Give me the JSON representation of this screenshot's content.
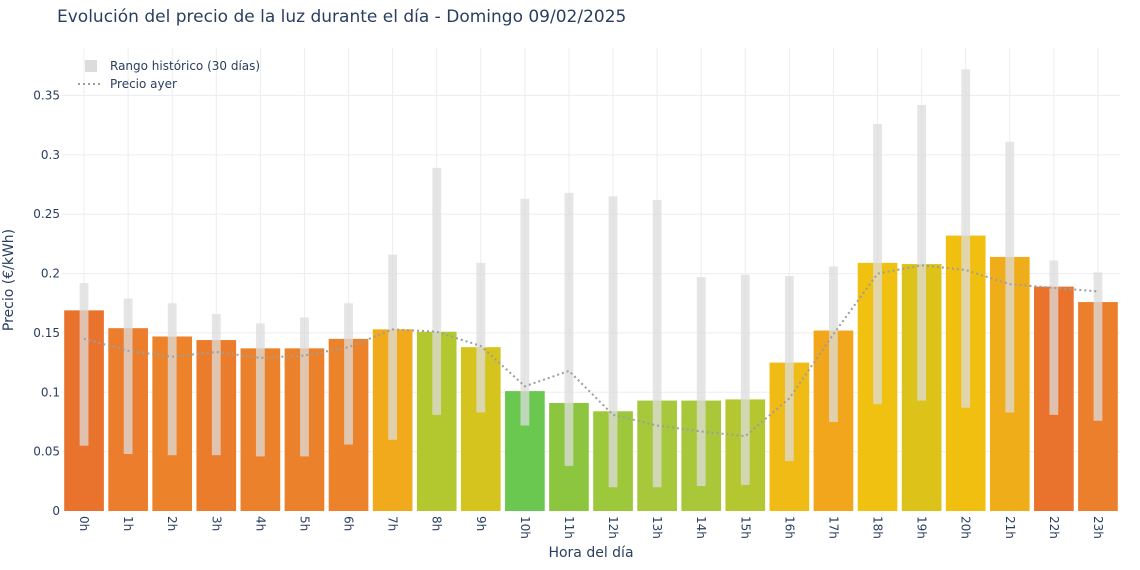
{
  "chart_data": {
    "type": "bar",
    "title": "Evolución del precio de la luz durante el día - Domingo 09/02/2025",
    "xlabel": "Hora del día",
    "ylabel": "Precio (€/kWh)",
    "ylim": [
      0,
      0.39
    ],
    "yticks": [
      0,
      0.05,
      0.1,
      0.15,
      0.2,
      0.25,
      0.3,
      0.35
    ],
    "ytick_labels": [
      "0",
      "0.05",
      "0.1",
      "0.15",
      "0.2",
      "0.25",
      "0.3",
      "0.35"
    ],
    "categories": [
      "0h",
      "1h",
      "2h",
      "3h",
      "4h",
      "5h",
      "6h",
      "7h",
      "8h",
      "9h",
      "10h",
      "11h",
      "12h",
      "13h",
      "14h",
      "15h",
      "16h",
      "17h",
      "18h",
      "19h",
      "20h",
      "21h",
      "22h",
      "23h"
    ],
    "grid": true,
    "legend_position": "top-left",
    "series": [
      {
        "type": "bar",
        "values": [
          0.169,
          0.154,
          0.147,
          0.144,
          0.137,
          0.137,
          0.145,
          0.153,
          0.151,
          0.138,
          0.101,
          0.091,
          0.084,
          0.093,
          0.093,
          0.094,
          0.125,
          0.152,
          0.209,
          0.208,
          0.232,
          0.214,
          0.189,
          0.176
        ],
        "colors": [
          "#e9722c",
          "#eb7d2c",
          "#ec832a",
          "#eb7c2c",
          "#ec812b",
          "#ec812b",
          "#ec832a",
          "#f0aa1c",
          "#b3c72e",
          "#d6c41e",
          "#6ac74f",
          "#8cc63f",
          "#9ec83b",
          "#a6c83a",
          "#a8c83a",
          "#b4c731",
          "#f0bb14",
          "#f1a61b",
          "#f1c111",
          "#ddc219",
          "#f1bf10",
          "#f0ad1a",
          "#e9722c",
          "#ec7f2c"
        ]
      },
      {
        "name": "Rango histórico (30 días)",
        "type": "range",
        "color": "#dcdcdc",
        "low": [
          0.055,
          0.048,
          0.047,
          0.047,
          0.046,
          0.046,
          0.056,
          0.06,
          0.081,
          0.083,
          0.072,
          0.038,
          0.02,
          0.02,
          0.021,
          0.022,
          0.042,
          0.075,
          0.09,
          0.093,
          0.087,
          0.083,
          0.081,
          0.076
        ],
        "high": [
          0.192,
          0.179,
          0.175,
          0.166,
          0.158,
          0.163,
          0.175,
          0.216,
          0.289,
          0.209,
          0.263,
          0.268,
          0.265,
          0.262,
          0.197,
          0.199,
          0.198,
          0.206,
          0.326,
          0.342,
          0.372,
          0.311,
          0.211,
          0.201
        ]
      },
      {
        "name": "Precio ayer",
        "type": "line",
        "style": "dotted",
        "color": "#9e9e9e",
        "values": [
          0.145,
          0.135,
          0.13,
          0.134,
          0.129,
          0.131,
          0.138,
          0.153,
          0.151,
          0.139,
          0.105,
          0.118,
          0.081,
          0.072,
          0.067,
          0.063,
          0.095,
          0.149,
          0.2,
          0.207,
          0.203,
          0.191,
          0.188,
          0.185
        ]
      }
    ]
  }
}
